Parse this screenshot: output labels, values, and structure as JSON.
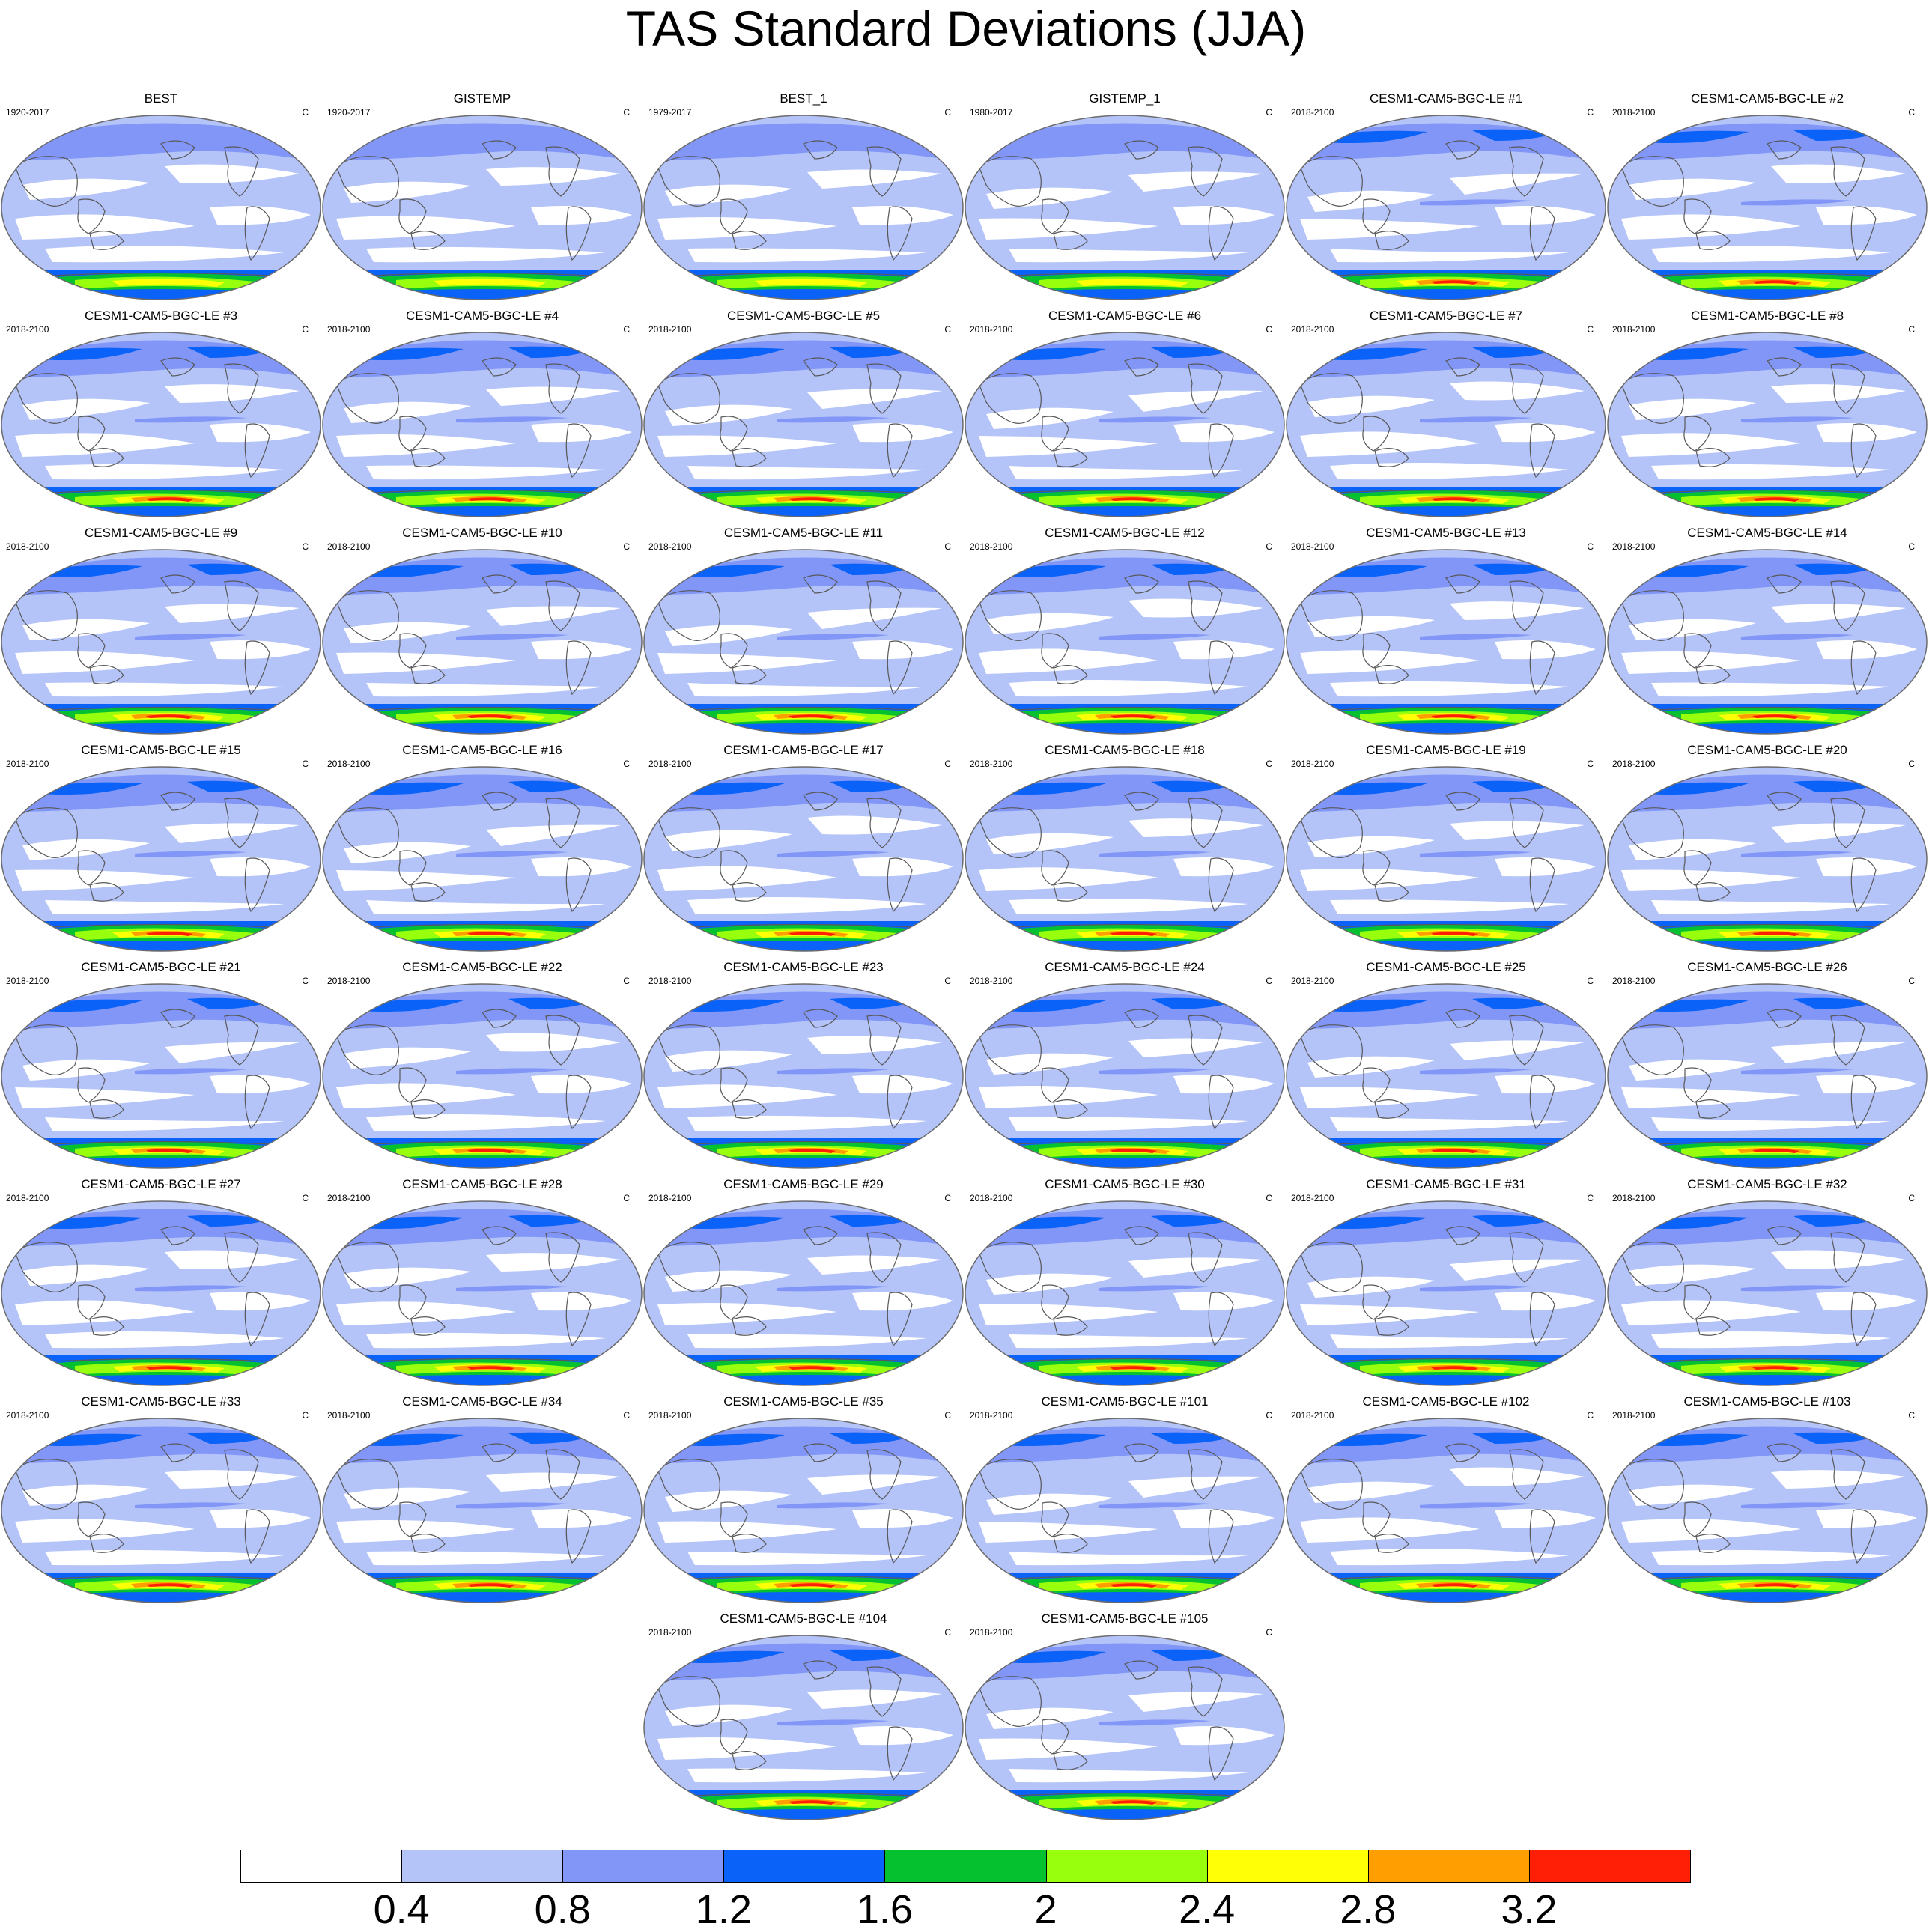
{
  "title": "TAS Standard Deviations (JJA)",
  "colors": {
    "levels": [
      "#ffffff",
      "#b4c3f8",
      "#8196f6",
      "#0a62f8",
      "#05c12f",
      "#98ff0c",
      "#ffff05",
      "#ff9e00",
      "#ff1e06"
    ],
    "coast": "#585858",
    "outline": "#6b6b6b"
  },
  "panels": [
    {
      "title": "BEST",
      "years": "1920-2017",
      "units": "C"
    },
    {
      "title": "GISTEMP",
      "years": "1920-2017",
      "units": "C"
    },
    {
      "title": "BEST_1",
      "years": "1979-2017",
      "units": "C"
    },
    {
      "title": "GISTEMP_1",
      "years": "1980-2017",
      "units": "C"
    },
    {
      "title": "CESM1-CAM5-BGC-LE #1",
      "years": "2018-2100",
      "units": "C"
    },
    {
      "title": "CESM1-CAM5-BGC-LE #2",
      "years": "2018-2100",
      "units": "C"
    },
    {
      "title": "CESM1-CAM5-BGC-LE #3",
      "years": "2018-2100",
      "units": "C"
    },
    {
      "title": "CESM1-CAM5-BGC-LE #4",
      "years": "2018-2100",
      "units": "C"
    },
    {
      "title": "CESM1-CAM5-BGC-LE #5",
      "years": "2018-2100",
      "units": "C"
    },
    {
      "title": "CESM1-CAM5-BGC-LE #6",
      "years": "2018-2100",
      "units": "C"
    },
    {
      "title": "CESM1-CAM5-BGC-LE #7",
      "years": "2018-2100",
      "units": "C"
    },
    {
      "title": "CESM1-CAM5-BGC-LE #8",
      "years": "2018-2100",
      "units": "C"
    },
    {
      "title": "CESM1-CAM5-BGC-LE #9",
      "years": "2018-2100",
      "units": "C"
    },
    {
      "title": "CESM1-CAM5-BGC-LE #10",
      "years": "2018-2100",
      "units": "C"
    },
    {
      "title": "CESM1-CAM5-BGC-LE #11",
      "years": "2018-2100",
      "units": "C"
    },
    {
      "title": "CESM1-CAM5-BGC-LE #12",
      "years": "2018-2100",
      "units": "C"
    },
    {
      "title": "CESM1-CAM5-BGC-LE #13",
      "years": "2018-2100",
      "units": "C"
    },
    {
      "title": "CESM1-CAM5-BGC-LE #14",
      "years": "2018-2100",
      "units": "C"
    },
    {
      "title": "CESM1-CAM5-BGC-LE #15",
      "years": "2018-2100",
      "units": "C"
    },
    {
      "title": "CESM1-CAM5-BGC-LE #16",
      "years": "2018-2100",
      "units": "C"
    },
    {
      "title": "CESM1-CAM5-BGC-LE #17",
      "years": "2018-2100",
      "units": "C"
    },
    {
      "title": "CESM1-CAM5-BGC-LE #18",
      "years": "2018-2100",
      "units": "C"
    },
    {
      "title": "CESM1-CAM5-BGC-LE #19",
      "years": "2018-2100",
      "units": "C"
    },
    {
      "title": "CESM1-CAM5-BGC-LE #20",
      "years": "2018-2100",
      "units": "C"
    },
    {
      "title": "CESM1-CAM5-BGC-LE #21",
      "years": "2018-2100",
      "units": "C"
    },
    {
      "title": "CESM1-CAM5-BGC-LE #22",
      "years": "2018-2100",
      "units": "C"
    },
    {
      "title": "CESM1-CAM5-BGC-LE #23",
      "years": "2018-2100",
      "units": "C"
    },
    {
      "title": "CESM1-CAM5-BGC-LE #24",
      "years": "2018-2100",
      "units": "C"
    },
    {
      "title": "CESM1-CAM5-BGC-LE #25",
      "years": "2018-2100",
      "units": "C"
    },
    {
      "title": "CESM1-CAM5-BGC-LE #26",
      "years": "2018-2100",
      "units": "C"
    },
    {
      "title": "CESM1-CAM5-BGC-LE #27",
      "years": "2018-2100",
      "units": "C"
    },
    {
      "title": "CESM1-CAM5-BGC-LE #28",
      "years": "2018-2100",
      "units": "C"
    },
    {
      "title": "CESM1-CAM5-BGC-LE #29",
      "years": "2018-2100",
      "units": "C"
    },
    {
      "title": "CESM1-CAM5-BGC-LE #30",
      "years": "2018-2100",
      "units": "C"
    },
    {
      "title": "CESM1-CAM5-BGC-LE #31",
      "years": "2018-2100",
      "units": "C"
    },
    {
      "title": "CESM1-CAM5-BGC-LE #32",
      "years": "2018-2100",
      "units": "C"
    },
    {
      "title": "CESM1-CAM5-BGC-LE #33",
      "years": "2018-2100",
      "units": "C"
    },
    {
      "title": "CESM1-CAM5-BGC-LE #34",
      "years": "2018-2100",
      "units": "C"
    },
    {
      "title": "CESM1-CAM5-BGC-LE #35",
      "years": "2018-2100",
      "units": "C"
    },
    {
      "title": "CESM1-CAM5-BGC-LE #101",
      "years": "2018-2100",
      "units": "C"
    },
    {
      "title": "CESM1-CAM5-BGC-LE #102",
      "years": "2018-2100",
      "units": "C"
    },
    {
      "title": "CESM1-CAM5-BGC-LE #103",
      "years": "2018-2100",
      "units": "C"
    },
    {
      "title": "CESM1-CAM5-BGC-LE #104",
      "years": "2018-2100",
      "units": "C"
    },
    {
      "title": "CESM1-CAM5-BGC-LE #105",
      "years": "2018-2100",
      "units": "C"
    }
  ],
  "colorbar": {
    "labels": [
      "0.4",
      "0.8",
      "1.2",
      "1.6",
      "2",
      "2.4",
      "2.8",
      "3.2"
    ]
  }
}
